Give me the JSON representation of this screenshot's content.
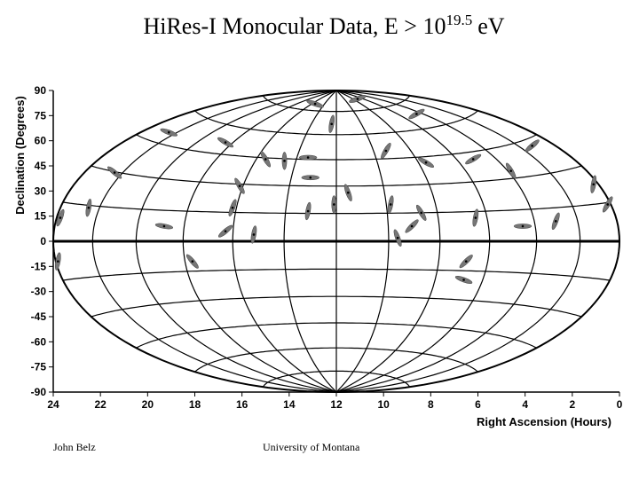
{
  "chart_data": {
    "type": "scatter",
    "title": "HiRes-I Monocular Data, E > 10",
    "title_exponent": "19.5",
    "title_unit": "eV",
    "x_label": "Right Ascension (Hours)",
    "y_label": "Declination (Degrees)",
    "xlim": [
      24,
      0
    ],
    "ylim": [
      -90,
      90
    ],
    "xticks": [
      24,
      22,
      20,
      18,
      16,
      14,
      12,
      10,
      8,
      6,
      4,
      2,
      0
    ],
    "yticks": [
      90,
      75,
      60,
      45,
      30,
      15,
      0,
      -15,
      -30,
      -45,
      -60,
      -75,
      -90
    ],
    "color": "#777777",
    "x": [
      12.9,
      12.2,
      11.1,
      8.6,
      19.1,
      16.7,
      15.0,
      14.2,
      13.2,
      13.1,
      11.5,
      9.9,
      6.2,
      4.6,
      3.7,
      1.1,
      0.5,
      16.1,
      16.4,
      13.2,
      12.1,
      9.7,
      8.4,
      8.8,
      9.4,
      15.5,
      16.7,
      19.3,
      22.5,
      23.7,
      21.4,
      6.1,
      4.1,
      2.7,
      18.1,
      23.8,
      6.5,
      6.6,
      8.2
    ],
    "y": [
      82,
      70,
      85,
      76,
      65,
      59,
      49,
      48,
      50,
      38,
      29,
      54,
      49,
      42,
      57,
      34,
      22,
      33,
      20,
      18,
      22,
      22,
      17,
      9,
      2,
      4,
      6,
      9,
      20,
      14,
      41,
      14,
      9,
      12,
      -12,
      -12,
      -12,
      -23,
      47
    ],
    "angle": [
      -20,
      80,
      20,
      30,
      -20,
      -30,
      -60,
      90,
      0,
      0,
      -70,
      60,
      30,
      -60,
      40,
      80,
      60,
      -60,
      70,
      80,
      90,
      80,
      -60,
      45,
      -70,
      80,
      40,
      -10,
      80,
      70,
      -40,
      80,
      0,
      70,
      -50,
      80,
      45,
      -20,
      -30
    ]
  },
  "footer": {
    "author": "John Belz",
    "institution": "University of Montana"
  }
}
